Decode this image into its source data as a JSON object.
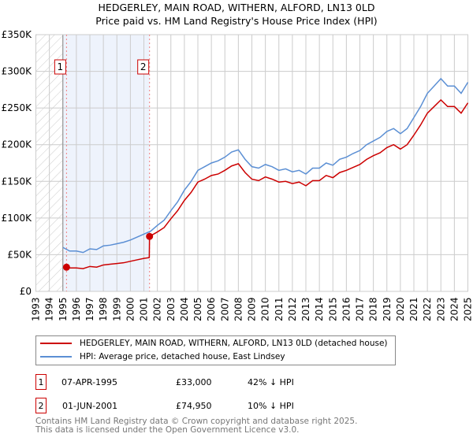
{
  "chart_data": {
    "type": "line",
    "title": "HEDGERLEY, MAIN ROAD, WITHERN, ALFORD, LN13 0LD",
    "subtitle": "Price paid vs. HM Land Registry's House Price Index (HPI)",
    "xlim": [
      1993,
      2025
    ],
    "ylim": [
      0,
      350000
    ],
    "yticks": [
      0,
      50000,
      100000,
      150000,
      200000,
      250000,
      300000,
      350000
    ],
    "ytick_labels": [
      "£0",
      "£50K",
      "£100K",
      "£150K",
      "£200K",
      "£250K",
      "£300K",
      "£350K"
    ],
    "xticks": [
      "1993",
      "1994",
      "1995",
      "1996",
      "1997",
      "1998",
      "1999",
      "2000",
      "2001",
      "2002",
      "2003",
      "2004",
      "2005",
      "2006",
      "2007",
      "2008",
      "2009",
      "2010",
      "2011",
      "2012",
      "2013",
      "2014",
      "2015",
      "2016",
      "2017",
      "2018",
      "2019",
      "2020",
      "2021",
      "2022",
      "2023",
      "2024",
      "2025"
    ],
    "grid": true,
    "series": [
      {
        "name": "HEDGERLEY, MAIN ROAD, WITHERN, ALFORD, LN13 0LD (detached house)",
        "color": "#cc0000",
        "x": [
          1995.27,
          1995.5,
          1996,
          1996.5,
          1997,
          1997.5,
          1998,
          1998.5,
          1999,
          1999.5,
          2000,
          2000.5,
          2001,
          2001.4,
          2001.42,
          2002,
          2002.5,
          2003,
          2003.5,
          2004,
          2004.5,
          2005,
          2005.5,
          2006,
          2006.5,
          2007,
          2007.5,
          2008,
          2008.5,
          2009,
          2009.5,
          2010,
          2010.5,
          2011,
          2011.5,
          2012,
          2012.5,
          2013,
          2013.5,
          2014,
          2014.5,
          2015,
          2015.5,
          2016,
          2016.5,
          2017,
          2017.5,
          2018,
          2018.5,
          2019,
          2019.5,
          2020,
          2020.5,
          2021,
          2021.5,
          2022,
          2022.5,
          2023,
          2023.5,
          2024,
          2024.5,
          2025
        ],
        "y": [
          33000,
          32000,
          32000,
          31000,
          34000,
          33000,
          36000,
          37000,
          38000,
          39000,
          41000,
          43000,
          45000,
          46000,
          74950,
          81000,
          87000,
          99000,
          110000,
          124000,
          135000,
          149000,
          153000,
          158000,
          160000,
          165000,
          171000,
          174000,
          162000,
          153000,
          151000,
          156000,
          153000,
          149000,
          150000,
          147000,
          149000,
          144000,
          151000,
          151000,
          158000,
          155000,
          162000,
          165000,
          169000,
          173000,
          180000,
          185000,
          189000,
          196000,
          200000,
          194000,
          200000,
          213000,
          227000,
          243000,
          252000,
          261000,
          252000,
          252000,
          243000,
          257000
        ]
      },
      {
        "name": "HPI: Average price, detached house, East Lindsey",
        "color": "#5b8fd4",
        "x_start": 1995,
        "x_step": 0.5,
        "y": [
          60000,
          55000,
          55000,
          53000,
          58000,
          57000,
          62000,
          63000,
          65000,
          67000,
          70000,
          74000,
          78000,
          82000,
          90000,
          97000,
          110000,
          122000,
          138000,
          150000,
          165000,
          170000,
          175000,
          178000,
          183000,
          190000,
          193000,
          180000,
          170000,
          168000,
          173000,
          170000,
          165000,
          167000,
          163000,
          165000,
          160000,
          168000,
          168000,
          175000,
          172000,
          180000,
          183000,
          188000,
          192000,
          200000,
          205000,
          210000,
          218000,
          222000,
          215000,
          222000,
          237000,
          252000,
          270000,
          280000,
          290000,
          280000,
          280000,
          270000,
          285000
        ]
      }
    ],
    "annotations": [
      {
        "label": "1",
        "x": 1995.27,
        "y": 33000
      },
      {
        "label": "2",
        "x": 2001.42,
        "y": 74950
      }
    ]
  },
  "legend": {
    "items": [
      {
        "label": "HEDGERLEY, MAIN ROAD, WITHERN, ALFORD, LN13 0LD (detached house)",
        "color": "#cc0000"
      },
      {
        "label": "HPI: Average price, detached house, East Lindsey",
        "color": "#5b8fd4"
      }
    ]
  },
  "sales": [
    {
      "num": "1",
      "date": "07-APR-1995",
      "price": "£33,000",
      "hpi": "42% ↓ HPI"
    },
    {
      "num": "2",
      "date": "01-JUN-2001",
      "price": "£74,950",
      "hpi": "10% ↓ HPI"
    }
  ],
  "footer": {
    "line1": "Contains HM Land Registry data © Crown copyright and database right 2025.",
    "line2": "This data is licensed under the Open Government Licence v3.0."
  }
}
